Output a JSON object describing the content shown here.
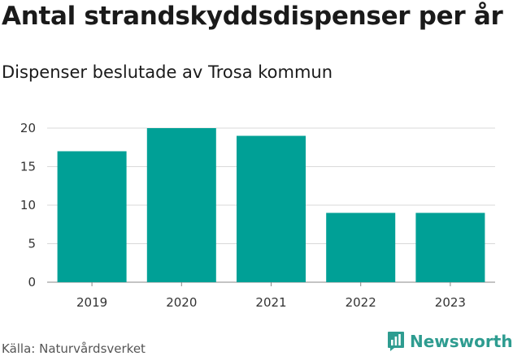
{
  "header": {
    "title": "Antal strandskyddsdispenser per år",
    "subtitle": "Dispenser beslutade av Trosa kommun"
  },
  "footer": {
    "source": "Källa: Naturvårdsverket",
    "brand": "Newsworthy",
    "brand_icon": "chart-logo-icon"
  },
  "colors": {
    "bar": "#00a096",
    "grid": "#d9d9d9",
    "brand": "#2e9c90"
  },
  "chart_data": {
    "type": "bar",
    "title": "Antal strandskyddsdispenser per år",
    "subtitle": "Dispenser beslutade av Trosa kommun",
    "categories": [
      "2019",
      "2020",
      "2021",
      "2022",
      "2023"
    ],
    "values": [
      17,
      20,
      19,
      9,
      9
    ],
    "yticks": [
      "0",
      "5",
      "10",
      "15",
      "20"
    ],
    "ylim": [
      0,
      20
    ],
    "xlabel": "",
    "ylabel": "",
    "grid": true
  }
}
